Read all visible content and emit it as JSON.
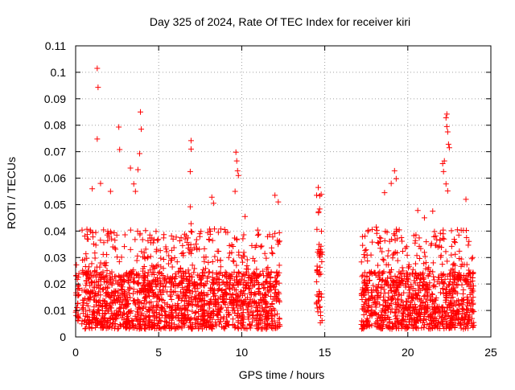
{
  "chart_data": {
    "type": "scatter",
    "title": "Day 325 of 2024, Rate Of TEC Index for receiver kiri",
    "xlabel": "GPS time / hours",
    "ylabel": "ROTI / TECUs",
    "xlim": [
      0,
      25
    ],
    "ylim": [
      0,
      0.11
    ],
    "xticks": [
      0,
      5,
      10,
      15,
      20,
      25
    ],
    "yticks": [
      0,
      0.01,
      0.02,
      0.03,
      0.04,
      0.05,
      0.06,
      0.07,
      0.08,
      0.09,
      0.1,
      0.11
    ],
    "grid": true,
    "marker": "+",
    "color": "#ff0000",
    "series": [
      {
        "name": "ROTI",
        "segments": [
          {
            "start": 0.0,
            "end": 0.2,
            "base": [
              0.006,
              0.022
            ]
          },
          {
            "start": 0.35,
            "end": 12.3,
            "base": [
              0.003,
              0.03
            ]
          },
          {
            "start": 14.5,
            "end": 14.85,
            "base": [
              0.005,
              0.043
            ]
          },
          {
            "start": 17.2,
            "end": 24.0,
            "base": [
              0.003,
              0.03
            ]
          }
        ],
        "highlights": [
          {
            "x": 1.3,
            "y": 0.1015
          },
          {
            "x": 1.35,
            "y": 0.0943
          },
          {
            "x": 1.3,
            "y": 0.0748
          },
          {
            "x": 2.6,
            "y": 0.0793
          },
          {
            "x": 2.65,
            "y": 0.0708
          },
          {
            "x": 3.9,
            "y": 0.085
          },
          {
            "x": 3.95,
            "y": 0.0785
          },
          {
            "x": 3.85,
            "y": 0.0693
          },
          {
            "x": 3.3,
            "y": 0.0638
          },
          {
            "x": 3.75,
            "y": 0.0632
          },
          {
            "x": 3.5,
            "y": 0.0578
          },
          {
            "x": 3.6,
            "y": 0.055
          },
          {
            "x": 1.5,
            "y": 0.058
          },
          {
            "x": 1.0,
            "y": 0.056
          },
          {
            "x": 2.1,
            "y": 0.055
          },
          {
            "x": 6.95,
            "y": 0.0742
          },
          {
            "x": 6.95,
            "y": 0.071
          },
          {
            "x": 6.9,
            "y": 0.0625
          },
          {
            "x": 6.9,
            "y": 0.0492
          },
          {
            "x": 6.95,
            "y": 0.0428
          },
          {
            "x": 8.2,
            "y": 0.0528
          },
          {
            "x": 8.3,
            "y": 0.0505
          },
          {
            "x": 9.65,
            "y": 0.0698
          },
          {
            "x": 9.7,
            "y": 0.0665
          },
          {
            "x": 9.75,
            "y": 0.0628
          },
          {
            "x": 9.8,
            "y": 0.061
          },
          {
            "x": 9.6,
            "y": 0.055
          },
          {
            "x": 10.2,
            "y": 0.0455
          },
          {
            "x": 12.0,
            "y": 0.0535
          },
          {
            "x": 12.2,
            "y": 0.051
          },
          {
            "x": 19.2,
            "y": 0.0628
          },
          {
            "x": 19.3,
            "y": 0.0598
          },
          {
            "x": 19.0,
            "y": 0.058
          },
          {
            "x": 18.6,
            "y": 0.0545
          },
          {
            "x": 18.1,
            "y": 0.0415
          },
          {
            "x": 20.6,
            "y": 0.0478
          },
          {
            "x": 22.35,
            "y": 0.0842
          },
          {
            "x": 22.3,
            "y": 0.0828
          },
          {
            "x": 22.35,
            "y": 0.0795
          },
          {
            "x": 22.4,
            "y": 0.0775
          },
          {
            "x": 22.45,
            "y": 0.0728
          },
          {
            "x": 22.5,
            "y": 0.0715
          },
          {
            "x": 22.2,
            "y": 0.0665
          },
          {
            "x": 22.1,
            "y": 0.0655
          },
          {
            "x": 22.15,
            "y": 0.0625
          },
          {
            "x": 22.3,
            "y": 0.0578
          },
          {
            "x": 22.4,
            "y": 0.0552
          },
          {
            "x": 23.5,
            "y": 0.052
          },
          {
            "x": 21.5,
            "y": 0.0475
          },
          {
            "x": 21.0,
            "y": 0.045
          }
        ]
      }
    ]
  }
}
